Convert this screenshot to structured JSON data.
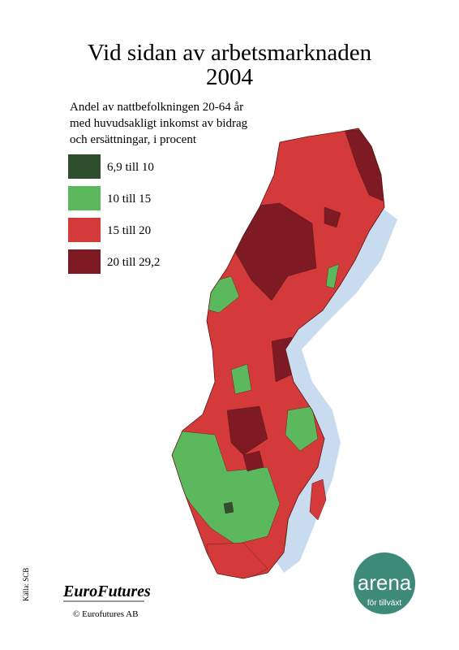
{
  "header": {
    "title": [
      "Vid sidan av arbetsmarknaden",
      "2004"
    ],
    "subtitle": [
      "Andel av nattbefolkningen 20-64 år",
      "med huvudsakligt inkomst av bidrag",
      "och ersättningar, i procent"
    ]
  },
  "legend": [
    {
      "label": "6,9 till 10",
      "color": "#2e4f2e"
    },
    {
      "label": "10 till 15",
      "color": "#5cb85c"
    },
    {
      "label": "15 till 20",
      "color": "#d43a3a"
    },
    {
      "label": "20 till 29,2",
      "color": "#7d1a24"
    }
  ],
  "source": "Källa: SCB",
  "logo": {
    "name": "EuroFutures",
    "copyright": "© Eurofutures AB"
  },
  "badge": {
    "name": "arena",
    "tagline": "för tillväxt"
  }
}
